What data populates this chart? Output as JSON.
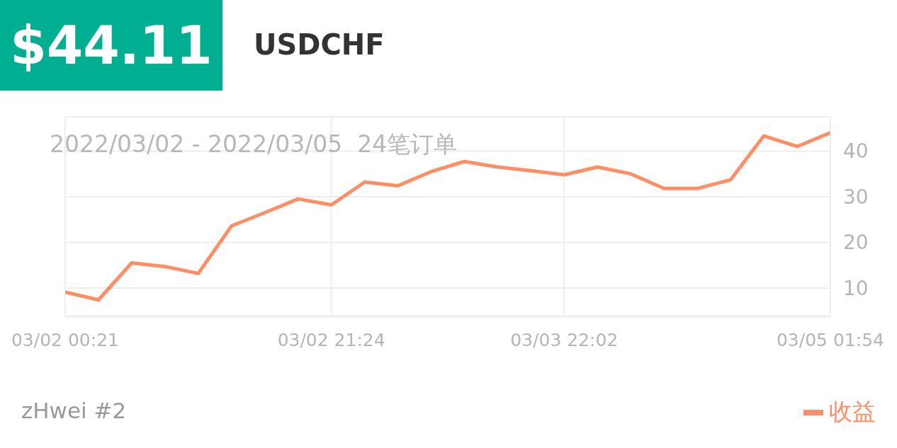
{
  "chart_data": {
    "type": "line",
    "title": "$44.11",
    "subtitle": "USDCHF",
    "annotations": [
      "2022/03/02 - 2022/03/05  24笔订单",
      "zHwei #2"
    ],
    "categories": [
      "03/02 00:21",
      null,
      null,
      null,
      null,
      null,
      null,
      null,
      "03/02 21:24",
      null,
      null,
      null,
      null,
      null,
      null,
      "03/03 22:02",
      null,
      null,
      null,
      null,
      null,
      null,
      null,
      "03/05 01:54"
    ],
    "series": [
      {
        "name": "收益",
        "color": "#fd8f67",
        "values": [
          9.1,
          7.4,
          15.5,
          14.7,
          13.2,
          23.6,
          26.5,
          29.5,
          28.2,
          33.2,
          32.4,
          35.5,
          37.7,
          36.5,
          35.7,
          34.8,
          36.5,
          35.0,
          31.8,
          31.8,
          33.7,
          43.3,
          41.0,
          44.0
        ]
      }
    ],
    "ylim": [
      3.8,
      47.5
    ],
    "yticks": [
      10,
      20,
      30,
      40
    ],
    "grid": true,
    "legend": "bottom right",
    "marker": "none",
    "line_style": "solid"
  }
}
